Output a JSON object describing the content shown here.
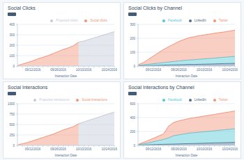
{
  "chart_data": [
    {
      "type": "area",
      "title": "Social Clicks",
      "x_label": "Interaction Date",
      "categories": [
        null,
        null,
        null,
        "09/12/2016",
        null,
        null,
        null,
        null,
        "09/26/2016",
        null,
        null,
        null,
        null,
        "10/10/2016",
        null,
        null,
        null,
        null,
        "10/24/2016",
        null
      ],
      "series": [
        {
          "name": "Social clicks",
          "color": "#f2937a",
          "values": [
            5,
            20,
            35,
            50,
            70,
            85,
            100,
            120,
            140,
            160,
            175,
            195,
            230,
            null,
            null,
            null,
            null,
            null,
            null,
            null
          ]
        },
        {
          "name": "Projected clicks",
          "color": "#c4cad6",
          "values": [
            null,
            null,
            null,
            null,
            null,
            null,
            null,
            null,
            null,
            null,
            null,
            null,
            230,
            240,
            255,
            270,
            285,
            300,
            315,
            330
          ]
        }
      ],
      "ylim": [
        0,
        400
      ],
      "yticks": [
        0,
        100,
        200,
        300,
        400
      ],
      "grid": true,
      "legend": "top-right",
      "stacked": false
    },
    {
      "type": "area",
      "title": "Social Clicks by Channel",
      "x_label": "Interaction Date",
      "categories": [
        null,
        null,
        null,
        "09/12/2016",
        null,
        null,
        null,
        null,
        "09/26/2016",
        null,
        null,
        null,
        null,
        "10/10/2016",
        null,
        null,
        null,
        null,
        "10/24/2016",
        null
      ],
      "series": [
        {
          "name": "LinkedIn",
          "color": "#516f90",
          "values": [
            2,
            3,
            4,
            5,
            6,
            7,
            8,
            9,
            10,
            11,
            12,
            12,
            13,
            14,
            15,
            16,
            17,
            18,
            19,
            20
          ]
        },
        {
          "name": "Facebook",
          "color": "#52c7d8",
          "values": [
            3,
            6,
            9,
            12,
            15,
            18,
            21,
            24,
            27,
            30,
            32,
            34,
            36,
            38,
            40,
            42,
            44,
            46,
            48,
            50
          ]
        },
        {
          "name": "Twitter",
          "color": "#f2937a",
          "values": [
            5,
            15,
            35,
            55,
            75,
            95,
            110,
            125,
            140,
            150,
            160,
            165,
            170,
            172,
            175,
            178,
            180,
            182,
            185,
            188
          ]
        }
      ],
      "ylim": [
        0,
        300
      ],
      "yticks": [
        0,
        100,
        200,
        300
      ],
      "grid": true,
      "legend": "top-right",
      "stacked": true
    },
    {
      "type": "area",
      "title": "Social Interactions",
      "x_label": "Interaction Date",
      "categories": [
        null,
        null,
        null,
        "09/12/2016",
        null,
        null,
        null,
        null,
        "09/26/2016",
        null,
        null,
        null,
        null,
        "10/10/2016",
        null,
        null,
        null,
        null,
        "10/24/2016",
        null
      ],
      "series": [
        {
          "name": "Social interactions",
          "color": "#f2937a",
          "values": [
            10,
            40,
            70,
            110,
            150,
            190,
            230,
            270,
            320,
            370,
            410,
            450,
            520,
            null,
            null,
            null,
            null,
            null,
            null,
            null
          ]
        },
        {
          "name": "Projected interactions",
          "color": "#c4cad6",
          "values": [
            null,
            null,
            null,
            null,
            null,
            null,
            null,
            null,
            null,
            null,
            null,
            null,
            520,
            560,
            600,
            640,
            680,
            720,
            760,
            800
          ]
        }
      ],
      "ylim": [
        0,
        1000
      ],
      "yticks": [
        0,
        250,
        500,
        750,
        1000
      ],
      "grid": true,
      "legend": "top-right",
      "stacked": false
    },
    {
      "type": "area",
      "title": "Social Interactions by Channel",
      "x_label": "Interaction Date",
      "categories": [
        null,
        null,
        null,
        "09/12/2016",
        null,
        null,
        null,
        null,
        "09/26/2016",
        null,
        null,
        null,
        null,
        "10/10/2016",
        null,
        null,
        null,
        null,
        "10/24/2016",
        null
      ],
      "series": [
        {
          "name": "LinkedIn",
          "color": "#516f90",
          "values": [
            5,
            8,
            10,
            12,
            14,
            16,
            18,
            20,
            22,
            24,
            26,
            28,
            30,
            32,
            34,
            36,
            38,
            40,
            42,
            44
          ]
        },
        {
          "name": "Facebook",
          "color": "#52c7d8",
          "values": [
            5,
            15,
            25,
            40,
            55,
            70,
            90,
            120,
            130,
            140,
            150,
            155,
            160,
            165,
            170,
            175,
            180,
            185,
            190,
            195
          ]
        },
        {
          "name": "Twitter",
          "color": "#f2937a",
          "values": [
            5,
            20,
            35,
            50,
            65,
            80,
            170,
            190,
            200,
            205,
            210,
            215,
            220,
            225,
            230,
            235,
            240,
            245,
            250,
            255
          ]
        }
      ],
      "ylim": [
        0,
        600
      ],
      "yticks": [
        0,
        200,
        400,
        600
      ],
      "grid": true,
      "legend": "top-right",
      "stacked": true
    }
  ]
}
